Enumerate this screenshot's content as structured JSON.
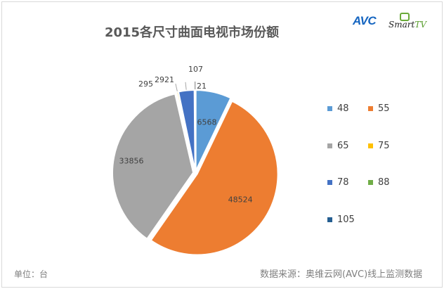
{
  "chart_data": {
    "type": "pie",
    "title": "2015各尺寸曲面电视市场份额",
    "categories": [
      "48",
      "55",
      "65",
      "75",
      "78",
      "88",
      "105"
    ],
    "values": [
      6568,
      48524,
      33856,
      295,
      2921,
      107,
      21
    ],
    "colors": [
      "#5b9bd5",
      "#ed7d31",
      "#a5a5a5",
      "#ffc000",
      "#4472c4",
      "#70ad47",
      "#255e91"
    ],
    "legend_position": "right",
    "start_angle_deg": 0,
    "direction": "clockwise"
  },
  "logos": {
    "avc": "AVC",
    "smart": "Smart",
    "tv": "TV"
  },
  "footer": {
    "unit": "单位：台",
    "source": "数据来源：奥维云网(AVC)线上监测数据"
  }
}
